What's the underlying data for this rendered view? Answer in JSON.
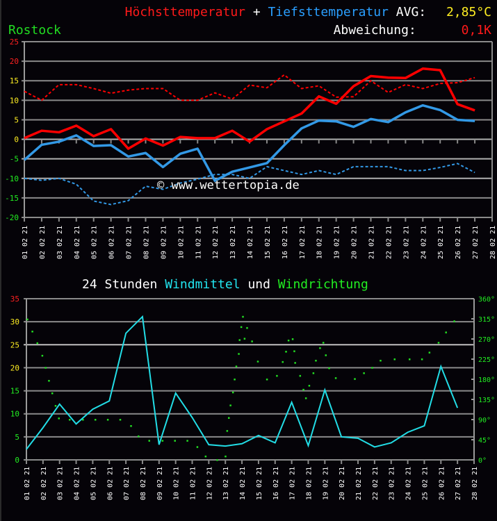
{
  "header": {
    "title_max": "Höchsttemperatur",
    "plus": "+",
    "title_min": "Tiefsttemperatur",
    "avg_label": "AVG:",
    "avg_value": "2,85°C",
    "station": "Rostock",
    "deviation_label": "Abweichung:",
    "deviation_value": "0,1K"
  },
  "watermark": "© www.wettertopia.de",
  "wind_title": {
    "prefix": "24 Stunden",
    "mean": "Windmittel",
    "und": "und",
    "direction": "Windrichtung"
  },
  "colors": {
    "tmax": "#ff0000",
    "tmin": "#3399e6",
    "wind": "#22dde6",
    "direction": "#22dd22",
    "grid": "#8a8a8a"
  },
  "chart_data": [
    {
      "type": "line",
      "title": "Höchsttemperatur + Tiefsttemperatur",
      "xlabel": "",
      "ylabel": "°C",
      "ylim": [
        -20,
        25
      ],
      "yticks": [
        25,
        20,
        15,
        10,
        5,
        0,
        -5,
        -10,
        -15,
        -20
      ],
      "grid": true,
      "categories": [
        "01 02 21",
        "02 02 21",
        "03 02 21",
        "04 02 21",
        "05 02 21",
        "06 02 21",
        "07 02 21",
        "08 02 21",
        "09 02 21",
        "10 02 21",
        "11 02 21",
        "12 02 21",
        "13 02 21",
        "14 02 21",
        "15 02 21",
        "16 02 21",
        "17 02 21",
        "18 02 21",
        "19 02 21",
        "20 02 21",
        "21 02 21",
        "22 02 21",
        "23 02 21",
        "24 02 21",
        "25 02 21",
        "26 02 21",
        "27 02 21",
        "28 02 21"
      ],
      "series": [
        {
          "name": "Höchsttemperatur",
          "style": "solid",
          "color": "#ff0000",
          "values": [
            0.3,
            2.2,
            1.8,
            3.5,
            0.8,
            2.6,
            -2.4,
            0.2,
            -1.6,
            0.6,
            0.3,
            0.3,
            2.2,
            -0.6,
            2.6,
            4.6,
            6.6,
            11.0,
            9.1,
            13.6,
            16.2,
            15.8,
            15.7,
            18.1,
            17.7,
            9.0,
            7.4
          ]
        },
        {
          "name": "Tiefsttemperatur",
          "style": "solid",
          "color": "#3399e6",
          "values": [
            -5.3,
            -1.4,
            -0.6,
            1.0,
            -1.7,
            -1.5,
            -4.4,
            -3.5,
            -7.1,
            -3.7,
            -2.4,
            -10.6,
            -8.3,
            -7.2,
            -6.1,
            -1.5,
            2.8,
            4.8,
            4.6,
            3.2,
            5.2,
            4.4,
            6.9,
            8.7,
            7.5,
            5.0,
            4.7
          ]
        },
        {
          "name": "Höchsttemperatur Normal",
          "style": "dashed",
          "color": "#ff0000",
          "values": [
            12.3,
            10.0,
            14.0,
            14.0,
            13.0,
            11.8,
            12.6,
            13.0,
            13.0,
            10.0,
            10.0,
            11.9,
            10.3,
            13.9,
            13.2,
            16.5,
            13.0,
            13.7,
            10.8,
            10.9,
            15.0,
            12.0,
            14.0,
            13.0,
            14.3,
            14.5,
            15.8
          ]
        },
        {
          "name": "Tiefsttemperatur Normal",
          "style": "dashed",
          "color": "#3399e6",
          "values": [
            -10.0,
            -10.5,
            -10.0,
            -11.5,
            -15.8,
            -16.7,
            -15.7,
            -12.0,
            -12.8,
            -11.2,
            -10.2,
            -9.0,
            -9.0,
            -10.0,
            -7.0,
            -8.0,
            -9.0,
            -8.0,
            -9.0,
            -7.0,
            -7.0,
            -7.0,
            -8.0,
            -8.0,
            -7.2,
            -6.2,
            -8.5
          ]
        }
      ],
      "annotations": [
        "AVG: 2,85°C",
        "Abweichung: 0,1K",
        "Rostock"
      ]
    },
    {
      "type": "line",
      "title": "24 Stunden Windmittel und Windrichtung",
      "xlabel": "",
      "ylabel": "Windmittel",
      "ylim": [
        0,
        35
      ],
      "yticks": [
        35,
        30,
        25,
        20,
        15,
        10,
        5,
        0
      ],
      "y2label": "Windrichtung",
      "y2lim": [
        0,
        360
      ],
      "y2ticks": [
        "360°",
        "315°",
        "270°",
        "225°",
        "180°",
        "135°",
        "90°",
        "45°",
        "0°"
      ],
      "grid": true,
      "categories": [
        "01 02 21",
        "02 02 21",
        "03 02 21",
        "04 02 21",
        "05 02 21",
        "06 02 21",
        "07 02 21",
        "08 02 21",
        "09 02 21",
        "10 02 21",
        "11 02 21",
        "12 02 21",
        "13 02 21",
        "14 02 21",
        "15 02 21",
        "16 02 21",
        "17 02 21",
        "18 02 21",
        "19 02 21",
        "20 02 21",
        "21 02 21",
        "22 02 21",
        "23 02 21",
        "24 02 21",
        "25 02 21",
        "26 02 21",
        "27 02 21",
        "28 02 21"
      ],
      "series": [
        {
          "name": "Windmittel",
          "color": "#22dde6",
          "values": [
            2.3,
            7.0,
            12.1,
            7.8,
            11.0,
            12.8,
            27.5,
            31.1,
            3.3,
            14.5,
            9.2,
            3.3,
            3.0,
            3.5,
            5.3,
            3.7,
            12.5,
            3.1,
            15.2,
            5.0,
            4.7,
            2.8,
            3.7,
            6.0,
            7.4,
            20.3,
            11.3
          ]
        },
        {
          "name": "Windrichtung",
          "type": "scatter",
          "color": "#22dd22",
          "axis": "y2",
          "points": [
            [
              1.05,
              314
            ],
            [
              1.35,
              287
            ],
            [
              1.65,
              261
            ],
            [
              1.95,
              233
            ],
            [
              2.15,
              206
            ],
            [
              2.35,
              177
            ],
            [
              2.55,
              149
            ],
            [
              2.75,
              121
            ],
            [
              2.95,
              93
            ],
            [
              3.6,
              90
            ],
            [
              4.4,
              90
            ],
            [
              5.15,
              90
            ],
            [
              5.9,
              90
            ],
            [
              6.65,
              90
            ],
            [
              7.3,
              76
            ],
            [
              7.75,
              53
            ],
            [
              8.4,
              43
            ],
            [
              9.2,
              43
            ],
            [
              9.95,
              43
            ],
            [
              10.7,
              43
            ],
            [
              11.3,
              29
            ],
            [
              11.8,
              8
            ],
            [
              12.5,
              0
            ],
            [
              13.0,
              8
            ],
            [
              13.1,
              65
            ],
            [
              13.2,
              94
            ],
            [
              13.3,
              122
            ],
            [
              13.45,
              151
            ],
            [
              13.55,
              180
            ],
            [
              13.65,
              209
            ],
            [
              13.8,
              237
            ],
            [
              13.85,
              268
            ],
            [
              13.95,
              297
            ],
            [
              14.05,
              320
            ],
            [
              14.15,
              271
            ],
            [
              14.3,
              295
            ],
            [
              14.6,
              265
            ],
            [
              14.95,
              220
            ],
            [
              15.5,
              180
            ],
            [
              16.1,
              188
            ],
            [
              16.45,
              219
            ],
            [
              16.65,
              242
            ],
            [
              16.8,
              267
            ],
            [
              17.05,
              270
            ],
            [
              17.15,
              243
            ],
            [
              17.2,
              217
            ],
            [
              17.5,
              188
            ],
            [
              17.7,
              157
            ],
            [
              17.85,
              138
            ],
            [
              18.05,
              166
            ],
            [
              18.3,
              194
            ],
            [
              18.45,
              222
            ],
            [
              18.7,
              250
            ],
            [
              18.9,
              262
            ],
            [
              19.05,
              234
            ],
            [
              19.25,
              205
            ],
            [
              19.65,
              183
            ],
            [
              20.8,
              181
            ],
            [
              21.35,
              194
            ],
            [
              21.85,
              206
            ],
            [
              22.35,
              222
            ],
            [
              23.2,
              225
            ],
            [
              24.1,
              225
            ],
            [
              24.85,
              225
            ],
            [
              25.3,
              240
            ],
            [
              25.85,
              262
            ],
            [
              26.3,
              285
            ],
            [
              26.8,
              310
            ]
          ]
        }
      ]
    }
  ]
}
